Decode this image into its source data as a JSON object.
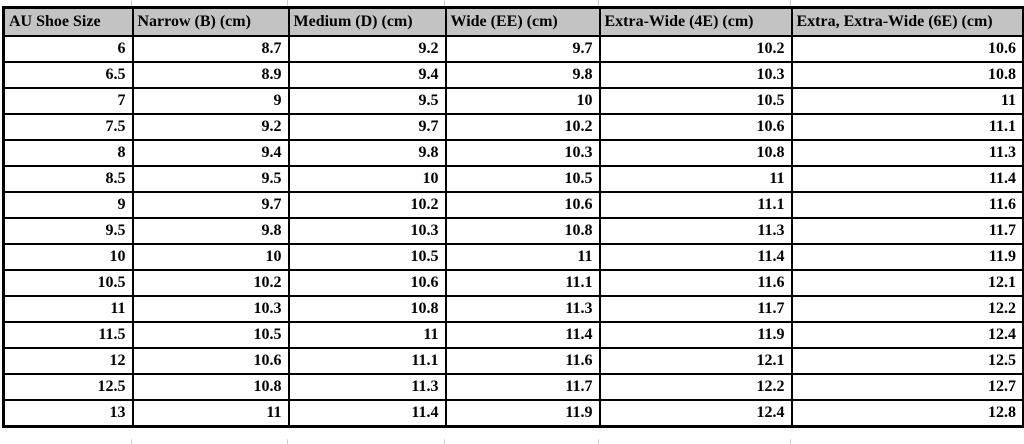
{
  "table": {
    "headers": [
      "AU Shoe Size",
      "Narrow (B) (cm)",
      "Medium (D) (cm)",
      "Wide (EE) (cm)",
      "Extra-Wide (4E) (cm)",
      "Extra, Extra-Wide (6E) (cm)"
    ],
    "rows": [
      [
        "6",
        "8.7",
        "9.2",
        "9.7",
        "10.2",
        "10.6"
      ],
      [
        "6.5",
        "8.9",
        "9.4",
        "9.8",
        "10.3",
        "10.8"
      ],
      [
        "7",
        "9",
        "9.5",
        "10",
        "10.5",
        "11"
      ],
      [
        "7.5",
        "9.2",
        "9.7",
        "10.2",
        "10.6",
        "11.1"
      ],
      [
        "8",
        "9.4",
        "9.8",
        "10.3",
        "10.8",
        "11.3"
      ],
      [
        "8.5",
        "9.5",
        "10",
        "10.5",
        "11",
        "11.4"
      ],
      [
        "9",
        "9.7",
        "10.2",
        "10.6",
        "11.1",
        "11.6"
      ],
      [
        "9.5",
        "9.8",
        "10.3",
        "10.8",
        "11.3",
        "11.7"
      ],
      [
        "10",
        "10",
        "10.5",
        "11",
        "11.4",
        "11.9"
      ],
      [
        "10.5",
        "10.2",
        "10.6",
        "11.1",
        "11.6",
        "12.1"
      ],
      [
        "11",
        "10.3",
        "10.8",
        "11.3",
        "11.7",
        "12.2"
      ],
      [
        "11.5",
        "10.5",
        "11",
        "11.4",
        "11.9",
        "12.4"
      ],
      [
        "12",
        "10.6",
        "11.1",
        "11.6",
        "12.1",
        "12.5"
      ],
      [
        "12.5",
        "10.8",
        "11.3",
        "11.7",
        "12.2",
        "12.7"
      ],
      [
        "13",
        "11",
        "11.4",
        "11.9",
        "12.4",
        "12.8"
      ]
    ]
  },
  "colors": {
    "header_bg": "#c3c3c3",
    "grid_border": "#000000",
    "faint_gridline": "#cfcfcf",
    "text": "#000000",
    "row_bg": "#ffffff"
  },
  "chart_data": {
    "type": "table",
    "first_column_header": "AU Shoe Size",
    "categories": [
      "6",
      "6.5",
      "7",
      "7.5",
      "8",
      "8.5",
      "9",
      "9.5",
      "10",
      "10.5",
      "11",
      "11.5",
      "12",
      "12.5",
      "13"
    ],
    "series": [
      {
        "name": "Narrow (B) (cm)",
        "values": [
          8.7,
          8.9,
          9,
          9.2,
          9.4,
          9.5,
          9.7,
          9.8,
          10,
          10.2,
          10.3,
          10.5,
          10.6,
          10.8,
          11
        ]
      },
      {
        "name": "Medium (D) (cm)",
        "values": [
          9.2,
          9.4,
          9.5,
          9.7,
          9.8,
          10,
          10.2,
          10.3,
          10.5,
          10.6,
          10.8,
          11,
          11.1,
          11.3,
          11.4
        ]
      },
      {
        "name": "Wide (EE) (cm)",
        "values": [
          9.7,
          9.8,
          10,
          10.2,
          10.3,
          10.5,
          10.6,
          10.8,
          11,
          11.1,
          11.3,
          11.4,
          11.6,
          11.7,
          11.9
        ]
      },
      {
        "name": "Extra-Wide (4E) (cm)",
        "values": [
          10.2,
          10.3,
          10.5,
          10.6,
          10.8,
          11,
          11.1,
          11.3,
          11.4,
          11.6,
          11.7,
          11.9,
          12.1,
          12.2,
          12.4
        ]
      },
      {
        "name": "Extra, Extra-Wide (6E) (cm)",
        "values": [
          10.6,
          10.8,
          11,
          11.1,
          11.3,
          11.4,
          11.6,
          11.7,
          11.9,
          12.1,
          12.2,
          12.4,
          12.5,
          12.7,
          12.8
        ]
      }
    ]
  }
}
